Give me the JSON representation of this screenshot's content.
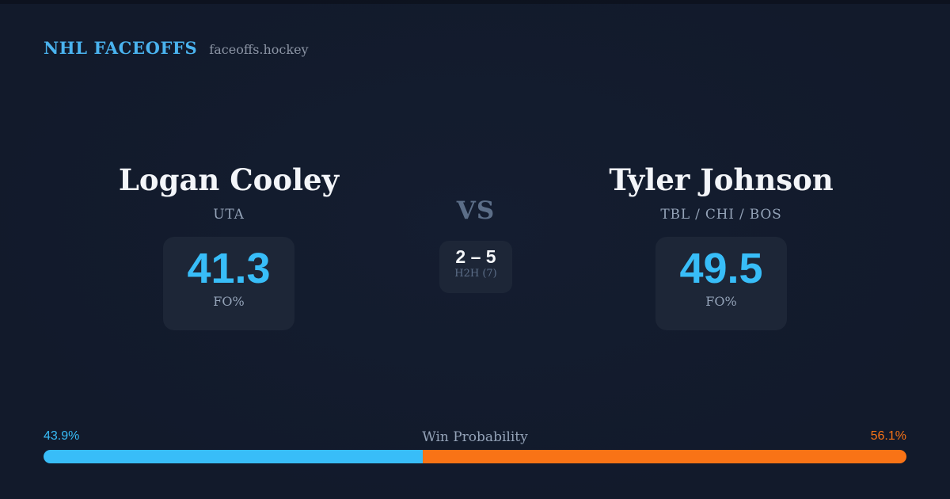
{
  "header": {
    "brand": "NHL FACEOFFS",
    "site": "faceoffs.hockey"
  },
  "players": {
    "left": {
      "name": "Logan Cooley",
      "teams": "UTA",
      "fo_pct": "41.3",
      "fo_label": "FO%"
    },
    "right": {
      "name": "Tyler Johnson",
      "teams": "TBL / CHI / BOS",
      "fo_pct": "49.5",
      "fo_label": "FO%"
    }
  },
  "center": {
    "vs_label": "VS",
    "h2h_score": "2 – 5",
    "h2h_label": "H2H (7)"
  },
  "win_probability": {
    "title": "Win Probability",
    "left_pct_label": "43.9%",
    "right_pct_label": "56.1%",
    "left_value": 43.9,
    "right_value": 56.1
  },
  "colors": {
    "background": "#121a2b",
    "panel": "#1d2637",
    "accent_blue": "#38bdf8",
    "accent_orange": "#f97316",
    "brand_blue": "#4ab3ef",
    "text_primary": "#f3f5f9",
    "text_muted": "#94a3b8",
    "text_dim": "#5c6e88",
    "site_gray": "#8b94a4"
  }
}
